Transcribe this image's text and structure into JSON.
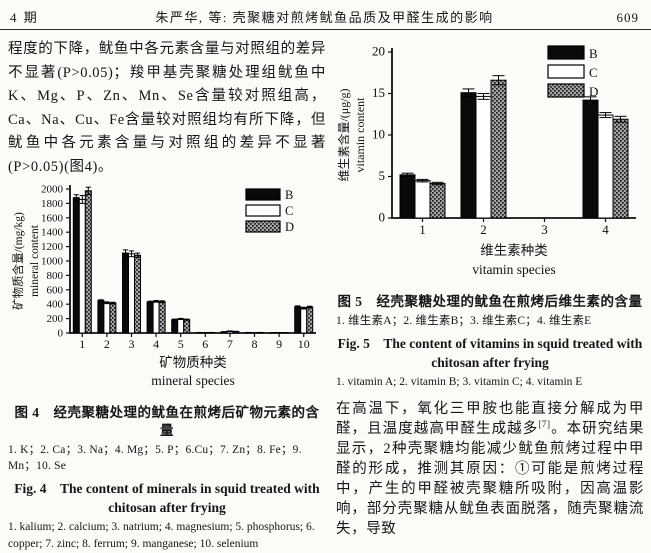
{
  "header": {
    "issue": "4 期",
    "title": "朱严华, 等: 壳聚糖对煎烤鱿鱼品质及甲醛生成的影响",
    "page_number": "609"
  },
  "left_column": {
    "paragraph": "程度的下降，鱿鱼中各元素含量与对照组的差异不显著(P>0.05)；羧甲基壳聚糖处理组鱿鱼中K、Mg、P、Zn、Mn、Se含量较对照组高，Ca、Na、Cu、Fe含量较对照组均有所下降，但鱿鱼中各元素含量与对照组的差异不显著(P>0.05)(图4)。",
    "fig4": {
      "caption_cn": "图 4　经壳聚糖处理的鱿鱼在煎烤后矿物元素的含量",
      "items_cn": "1. K；2. Ca；3. Na；4. Mg；5. P；6.Cu；7. Zn；8. Fe；9. Mn；10. Se",
      "caption_en_line1": "Fig. 4　The content of minerals in squid treated with",
      "caption_en_line2": "chitosan after frying",
      "items_en": "1. kalium; 2. calcium; 3. natrium; 4. magnesium; 5. phosphorus; 6. copper; 7. zinc; 8. ferrum; 9. manganese; 10. selenium"
    }
  },
  "right_column": {
    "fig5": {
      "caption_cn": "图 5　经壳聚糖处理的鱿鱼在煎烤后维生素的含量",
      "items_cn": "1. 维生素A；2. 维生素B；3. 维生素C；4. 维生素E",
      "caption_en_line1": "Fig. 5　The content of vitamins in squid treated with",
      "caption_en_line2": "chitosan after frying",
      "items_en": "1. vitamin A; 2. vitamin B; 3. vitamin C; 4. vitamin E"
    },
    "para_pre": "在高温下，氧化三甲胺也能直接分解成为甲醛，且温度越高甲醛生成越多",
    "para_ref": "[7]",
    "para_post": "。本研究结果显示，2种壳聚糖均能减少鱿鱼煎烤过程中甲醛的形成，推测其原因：①可能是煎烤过程中，产生的甲醛被壳聚糖所吸附，因高温影响，部分壳聚糖从鱿鱼表面脱落，随壳聚糖流失，导致"
  },
  "chart_data": [
    {
      "id": "fig4",
      "type": "bar",
      "title": "",
      "categories": [
        "1",
        "2",
        "3",
        "4",
        "5",
        "6",
        "7",
        "8",
        "9",
        "10"
      ],
      "series": [
        {
          "name": "B",
          "fill": "solid-black",
          "values": [
            1880,
            450,
            1110,
            430,
            185,
            6,
            15,
            6,
            4,
            365
          ],
          "errors": [
            40,
            12,
            45,
            12,
            8,
            2,
            4,
            2,
            2,
            12
          ]
        },
        {
          "name": "C",
          "fill": "solid-white",
          "values": [
            1855,
            420,
            1100,
            440,
            195,
            5,
            25,
            5,
            3,
            345
          ],
          "errors": [
            55,
            12,
            40,
            12,
            8,
            2,
            4,
            2,
            2,
            12
          ]
        },
        {
          "name": "D",
          "fill": "hatched-gray",
          "values": [
            1975,
            415,
            1080,
            435,
            185,
            6,
            20,
            6,
            4,
            360
          ],
          "errors": [
            50,
            12,
            30,
            12,
            8,
            2,
            4,
            2,
            2,
            12
          ]
        }
      ],
      "ylabel_cn": "矿物质含量/(mg/kg)",
      "ylabel_en": "mineral content",
      "xlabel_cn": "矿物质种类",
      "xlabel_en": "mineral species",
      "ylim": [
        0,
        2000
      ],
      "ytick_step": 200,
      "legend_position": "top-right",
      "grid": false,
      "colors": {
        "bar_black": "#0a0a0a",
        "bar_white": "#ffffff",
        "hatch_bg": "#a3a3a3",
        "hatch_dot": "#1c1c1c",
        "axis": "#111111"
      }
    },
    {
      "id": "fig5",
      "type": "bar",
      "title": "",
      "categories": [
        "1",
        "2",
        "3",
        "4"
      ],
      "series": [
        {
          "name": "B",
          "fill": "solid-black",
          "values": [
            5.2,
            15.1,
            0,
            14.2
          ],
          "errors": [
            0.2,
            0.45,
            0,
            0.4
          ]
        },
        {
          "name": "C",
          "fill": "solid-white",
          "values": [
            4.5,
            14.65,
            0,
            12.4
          ],
          "errors": [
            0.15,
            0.35,
            0,
            0.3
          ]
        },
        {
          "name": "D",
          "fill": "hatched-gray",
          "values": [
            4.15,
            16.6,
            0,
            11.9
          ],
          "errors": [
            0.15,
            0.55,
            0,
            0.35
          ]
        }
      ],
      "ylabel_cn": "维生素含量/(μg/g)",
      "ylabel_en": "vitamin content",
      "xlabel_cn": "维生素种类",
      "xlabel_en": "vitamin species",
      "ylim": [
        0,
        20
      ],
      "ytick_step": 5,
      "legend_position": "top-right",
      "grid": false,
      "colors": {
        "bar_black": "#0a0a0a",
        "bar_white": "#ffffff",
        "hatch_bg": "#a3a3a3",
        "hatch_dot": "#1c1c1c",
        "axis": "#111111"
      }
    }
  ]
}
